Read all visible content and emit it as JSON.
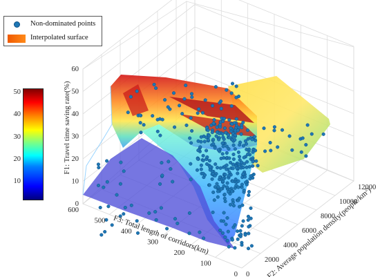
{
  "chart_data": {
    "type": "scatter3d",
    "title": "",
    "legend": {
      "position": "top-left",
      "entries": [
        {
          "label": "Non-dominated points",
          "marker": "dot",
          "color": "#1f77b4"
        },
        {
          "label": "Interpolated surface",
          "marker": "patch",
          "color": "#ff6a00"
        }
      ]
    },
    "axes": {
      "z": {
        "label": "F1: Travel time saving rate(%)",
        "range": [
          0,
          60
        ],
        "ticks": [
          "0",
          "10",
          "20",
          "30",
          "40",
          "50",
          "60"
        ]
      },
      "x": {
        "label": "F3: Total length of corridors(km)",
        "range": [
          0,
          600
        ],
        "ticks": [
          "0",
          "100",
          "200",
          "300",
          "400",
          "500",
          "600"
        ]
      },
      "y": {
        "label": "F2: Average population density(people/km",
        "label_superscript": "2",
        "label_close": ")",
        "range": [
          0,
          12000
        ],
        "ticks": [
          "0",
          "2000",
          "4000",
          "6000",
          "8000",
          "10000",
          "12000"
        ]
      }
    },
    "grid": true,
    "colorbar": {
      "position": "left",
      "range": [
        0,
        50
      ],
      "ticks": [
        "10",
        "20",
        "30",
        "40",
        "50"
      ],
      "colormap": "jet"
    },
    "colors": {
      "points": "#1f77b4",
      "surface_peak": "#cc1111",
      "surface_low": "#3030c0"
    },
    "series": [
      {
        "name": "Non-dominated points",
        "note_points_approx": 450
      }
    ]
  }
}
